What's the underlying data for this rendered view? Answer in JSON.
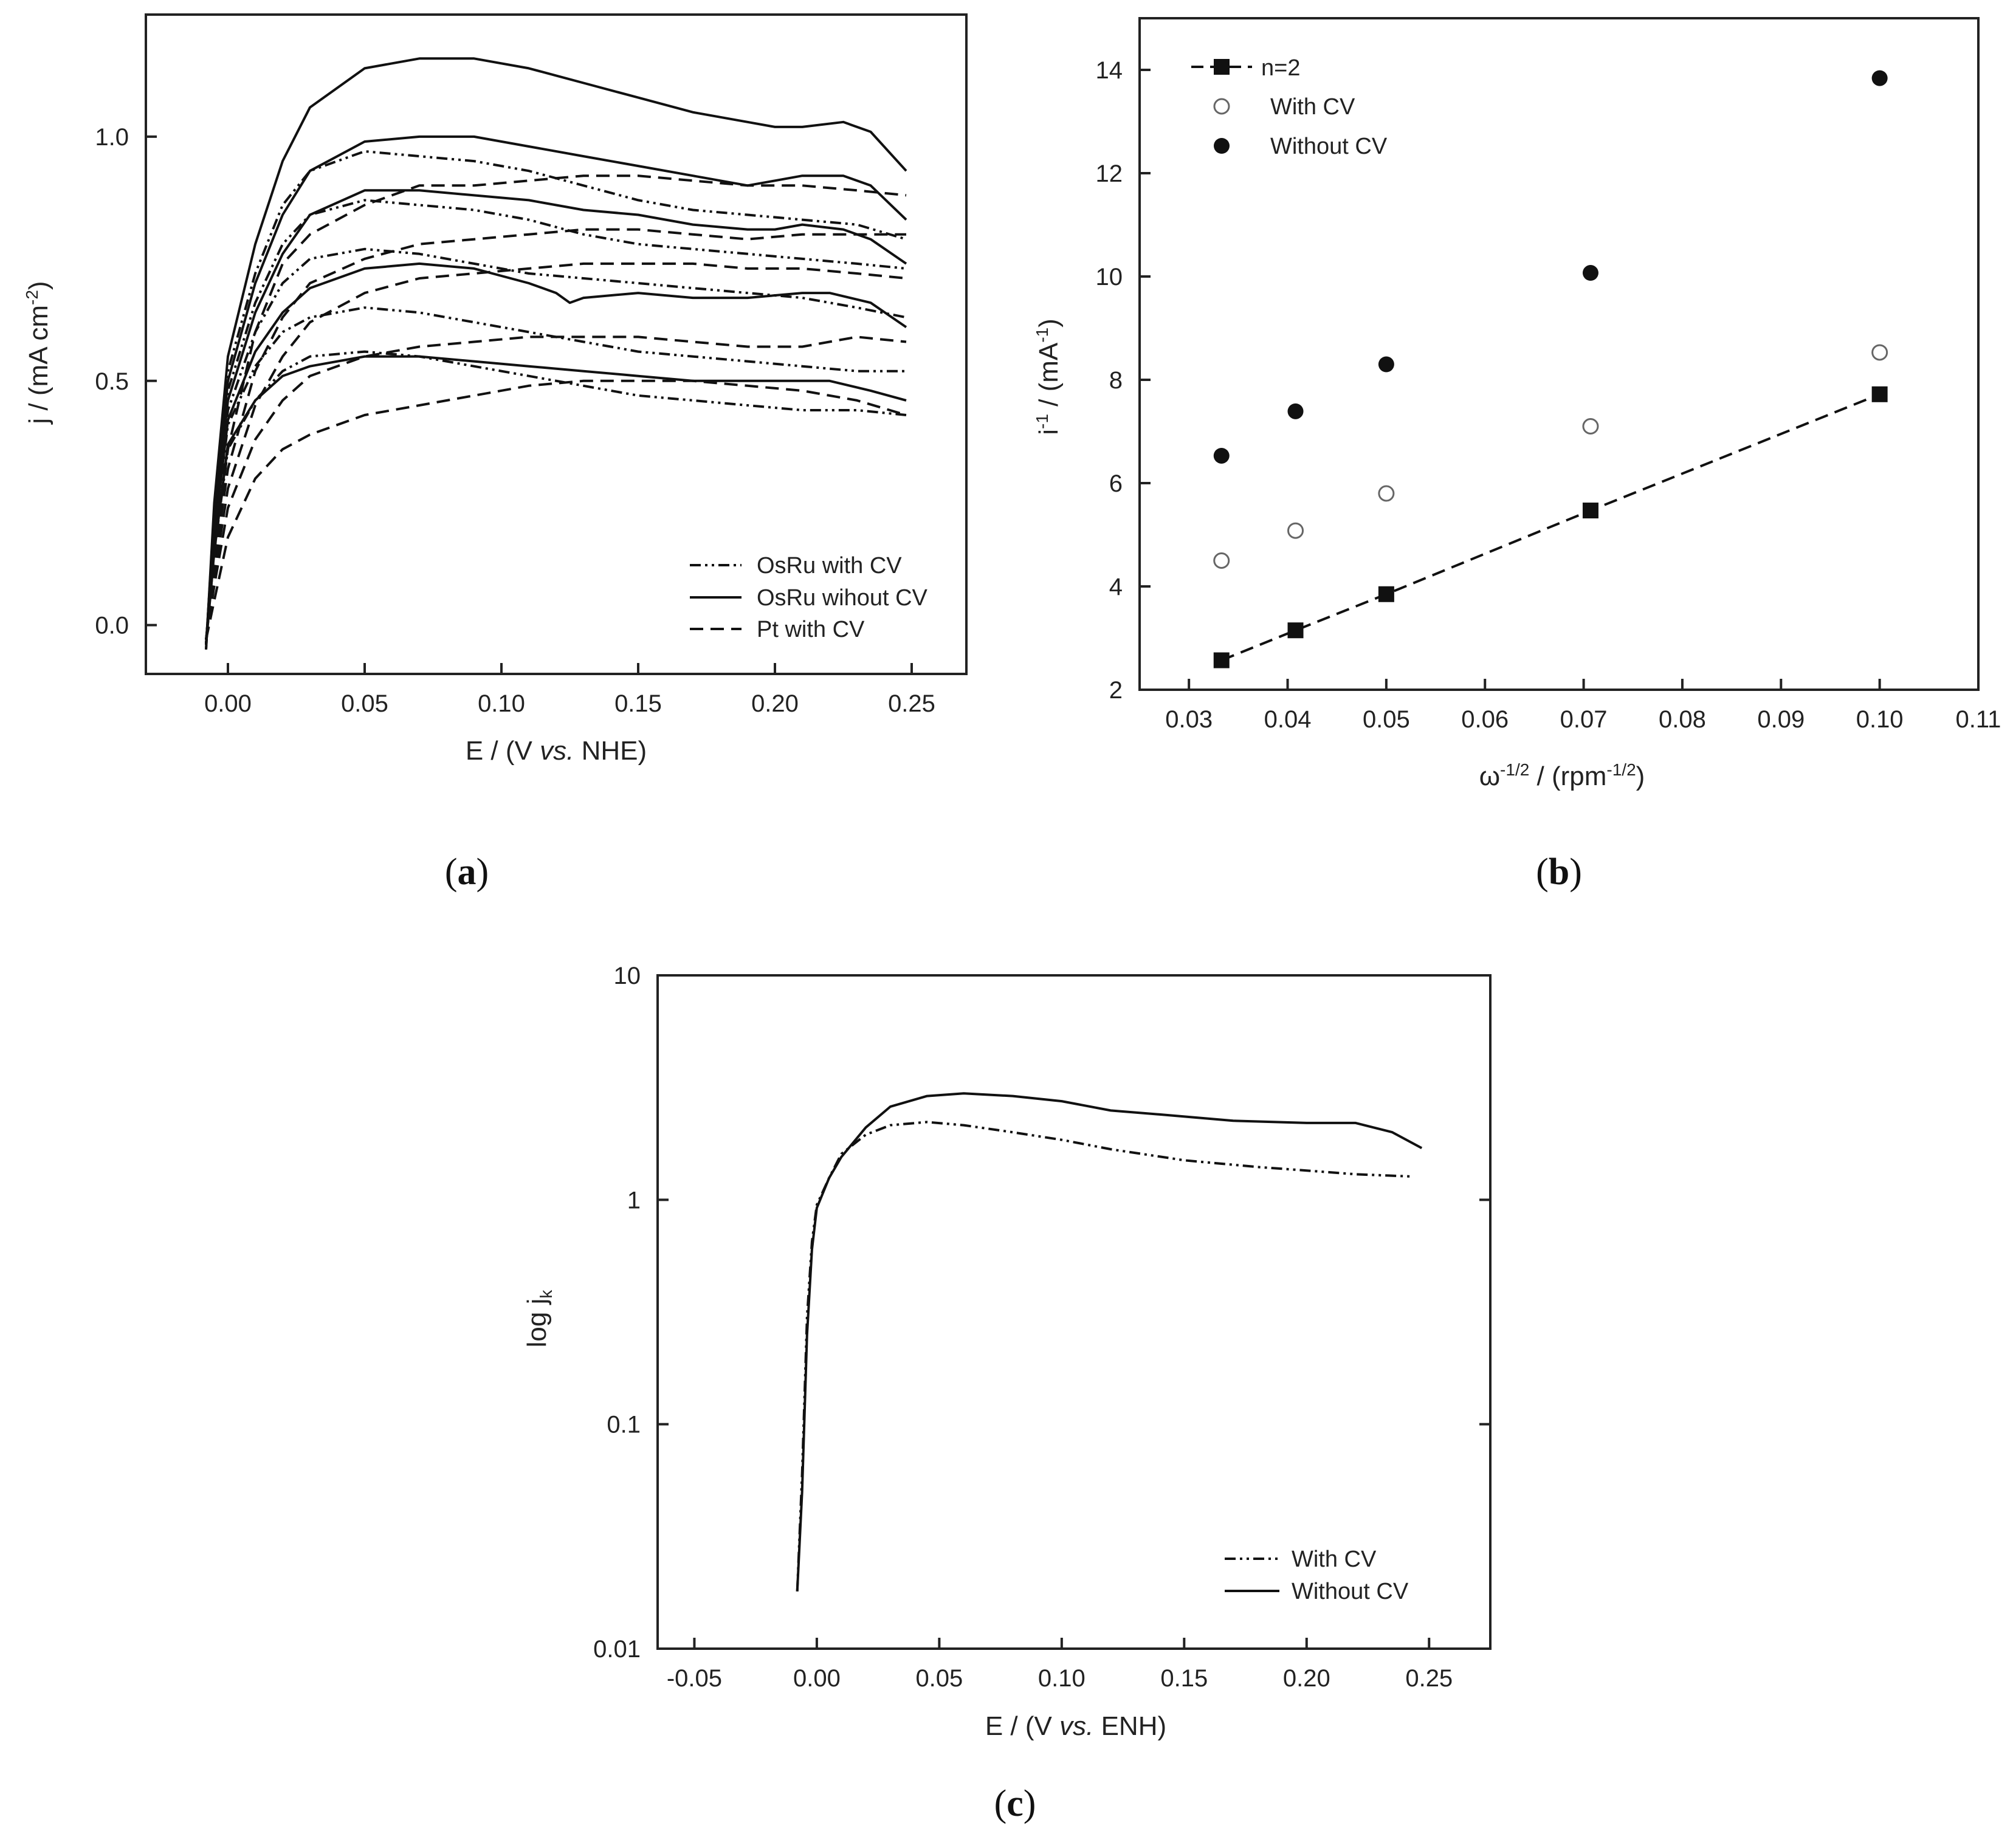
{
  "chart_data": [
    {
      "panel": "a",
      "type": "line",
      "caption_open": "(",
      "caption_letter": "a",
      "caption_close": ")",
      "xlabel": "E / (V vs. NHE)",
      "xlabel_parts": [
        "E / (V ",
        "vs.",
        " NHE)"
      ],
      "ylabel": "j / (mA cm-2)",
      "ylabel_parts": [
        "j / (mA cm",
        "-2",
        ")"
      ],
      "xlim": [
        -0.03,
        0.27
      ],
      "ylim": [
        -0.1,
        1.25
      ],
      "xticks": [
        0.0,
        0.05,
        0.1,
        0.15,
        0.2,
        0.25
      ],
      "xtick_labels": [
        "0.00",
        "0.05",
        "0.10",
        "0.15",
        "0.20",
        "0.25"
      ],
      "yticks": [
        0.0,
        0.5,
        1.0
      ],
      "ytick_labels": [
        "0.0",
        "0.5",
        "1.0"
      ],
      "legend": [
        {
          "label": "OsRu with CV",
          "style": "dashdotdot"
        },
        {
          "label": "OsRu wihout CV",
          "style": "solid"
        },
        {
          "label": "Pt with CV",
          "style": "dash"
        }
      ],
      "legend_position": "lower-right",
      "series": [
        {
          "group": "OsRu wihout CV",
          "style": "solid",
          "x": [
            -0.008,
            -0.005,
            0.0,
            0.01,
            0.02,
            0.03,
            0.05,
            0.07,
            0.09,
            0.11,
            0.13,
            0.15,
            0.17,
            0.19,
            0.2,
            0.21,
            0.225,
            0.235,
            0.248
          ],
          "y": [
            -0.05,
            0.25,
            0.55,
            0.78,
            0.95,
            1.06,
            1.14,
            1.16,
            1.16,
            1.14,
            1.11,
            1.08,
            1.05,
            1.03,
            1.02,
            1.02,
            1.03,
            1.01,
            0.93
          ]
        },
        {
          "group": "OsRu wihout CV",
          "style": "solid",
          "x": [
            -0.008,
            -0.005,
            0.0,
            0.01,
            0.02,
            0.03,
            0.05,
            0.07,
            0.09,
            0.11,
            0.13,
            0.15,
            0.17,
            0.19,
            0.2,
            0.21,
            0.225,
            0.235,
            0.248
          ],
          "y": [
            -0.04,
            0.22,
            0.5,
            0.7,
            0.84,
            0.93,
            0.99,
            1.0,
            1.0,
            0.98,
            0.96,
            0.94,
            0.92,
            0.9,
            0.91,
            0.92,
            0.92,
            0.9,
            0.83
          ]
        },
        {
          "group": "OsRu wihout CV",
          "style": "solid",
          "x": [
            -0.008,
            -0.005,
            0.0,
            0.01,
            0.02,
            0.03,
            0.05,
            0.07,
            0.09,
            0.11,
            0.13,
            0.15,
            0.17,
            0.19,
            0.2,
            0.21,
            0.225,
            0.235,
            0.248
          ],
          "y": [
            -0.04,
            0.2,
            0.46,
            0.64,
            0.76,
            0.84,
            0.89,
            0.89,
            0.88,
            0.87,
            0.85,
            0.84,
            0.82,
            0.81,
            0.81,
            0.82,
            0.81,
            0.79,
            0.74
          ]
        },
        {
          "group": "OsRu wihout CV",
          "style": "solid",
          "x": [
            -0.008,
            -0.005,
            0.0,
            0.01,
            0.02,
            0.03,
            0.05,
            0.07,
            0.09,
            0.11,
            0.12,
            0.125,
            0.13,
            0.15,
            0.17,
            0.19,
            0.21,
            0.22,
            0.235,
            0.248
          ],
          "y": [
            -0.04,
            0.18,
            0.42,
            0.56,
            0.64,
            0.69,
            0.73,
            0.74,
            0.73,
            0.7,
            0.68,
            0.66,
            0.67,
            0.68,
            0.67,
            0.67,
            0.68,
            0.68,
            0.66,
            0.61
          ]
        },
        {
          "group": "OsRu wihout CV",
          "style": "solid",
          "x": [
            -0.008,
            -0.005,
            0.0,
            0.01,
            0.02,
            0.03,
            0.05,
            0.07,
            0.09,
            0.11,
            0.13,
            0.15,
            0.17,
            0.19,
            0.21,
            0.22,
            0.235,
            0.248
          ],
          "y": [
            -0.04,
            0.15,
            0.37,
            0.46,
            0.51,
            0.53,
            0.55,
            0.55,
            0.54,
            0.53,
            0.52,
            0.51,
            0.5,
            0.5,
            0.5,
            0.5,
            0.48,
            0.46
          ]
        },
        {
          "group": "OsRu with CV",
          "style": "dashdotdot",
          "x": [
            -0.008,
            -0.005,
            0.0,
            0.01,
            0.02,
            0.03,
            0.05,
            0.07,
            0.09,
            0.11,
            0.13,
            0.15,
            0.17,
            0.19,
            0.21,
            0.23,
            0.248
          ],
          "y": [
            -0.05,
            0.24,
            0.52,
            0.72,
            0.86,
            0.93,
            0.97,
            0.96,
            0.95,
            0.93,
            0.9,
            0.87,
            0.85,
            0.84,
            0.83,
            0.82,
            0.79
          ]
        },
        {
          "group": "OsRu with CV",
          "style": "dashdotdot",
          "x": [
            -0.008,
            -0.005,
            0.0,
            0.01,
            0.02,
            0.03,
            0.05,
            0.07,
            0.09,
            0.11,
            0.13,
            0.15,
            0.17,
            0.19,
            0.21,
            0.23,
            0.248
          ],
          "y": [
            -0.04,
            0.22,
            0.48,
            0.66,
            0.78,
            0.84,
            0.87,
            0.86,
            0.85,
            0.83,
            0.8,
            0.78,
            0.77,
            0.76,
            0.75,
            0.74,
            0.73
          ]
        },
        {
          "group": "OsRu with CV",
          "style": "dashdotdot",
          "x": [
            -0.008,
            -0.005,
            0.0,
            0.01,
            0.02,
            0.03,
            0.05,
            0.07,
            0.09,
            0.11,
            0.13,
            0.15,
            0.17,
            0.19,
            0.21,
            0.23,
            0.248
          ],
          "y": [
            -0.04,
            0.2,
            0.44,
            0.6,
            0.7,
            0.75,
            0.77,
            0.76,
            0.74,
            0.72,
            0.71,
            0.7,
            0.69,
            0.68,
            0.67,
            0.65,
            0.63
          ]
        },
        {
          "group": "OsRu with CV",
          "style": "dashdotdot",
          "x": [
            -0.008,
            -0.005,
            0.0,
            0.01,
            0.02,
            0.03,
            0.05,
            0.07,
            0.09,
            0.11,
            0.13,
            0.15,
            0.17,
            0.19,
            0.21,
            0.23,
            0.248
          ],
          "y": [
            -0.04,
            0.18,
            0.41,
            0.53,
            0.6,
            0.63,
            0.65,
            0.64,
            0.62,
            0.6,
            0.58,
            0.56,
            0.55,
            0.54,
            0.53,
            0.52,
            0.52
          ]
        },
        {
          "group": "OsRu with CV",
          "style": "dashdotdot",
          "x": [
            -0.008,
            -0.005,
            0.0,
            0.01,
            0.02,
            0.03,
            0.05,
            0.07,
            0.09,
            0.11,
            0.13,
            0.15,
            0.17,
            0.19,
            0.21,
            0.23,
            0.248
          ],
          "y": [
            -0.04,
            0.15,
            0.36,
            0.46,
            0.52,
            0.55,
            0.56,
            0.55,
            0.53,
            0.51,
            0.49,
            0.47,
            0.46,
            0.45,
            0.44,
            0.44,
            0.43
          ]
        },
        {
          "group": "Pt with CV",
          "style": "dash",
          "x": [
            -0.008,
            -0.005,
            0.0,
            0.01,
            0.02,
            0.03,
            0.05,
            0.07,
            0.09,
            0.11,
            0.13,
            0.15,
            0.17,
            0.19,
            0.21,
            0.23,
            0.248
          ],
          "y": [
            -0.03,
            0.14,
            0.36,
            0.6,
            0.74,
            0.8,
            0.86,
            0.9,
            0.9,
            0.91,
            0.92,
            0.92,
            0.91,
            0.9,
            0.9,
            0.89,
            0.88
          ]
        },
        {
          "group": "Pt with CV",
          "style": "dash",
          "x": [
            -0.008,
            -0.005,
            0.0,
            0.01,
            0.02,
            0.03,
            0.05,
            0.07,
            0.09,
            0.11,
            0.13,
            0.15,
            0.17,
            0.19,
            0.21,
            0.23,
            0.248
          ],
          "y": [
            -0.03,
            0.12,
            0.32,
            0.52,
            0.63,
            0.7,
            0.75,
            0.78,
            0.79,
            0.8,
            0.81,
            0.81,
            0.8,
            0.79,
            0.8,
            0.8,
            0.8
          ]
        },
        {
          "group": "Pt with CV",
          "style": "dash",
          "x": [
            -0.008,
            -0.005,
            0.0,
            0.01,
            0.02,
            0.03,
            0.05,
            0.07,
            0.09,
            0.11,
            0.13,
            0.15,
            0.17,
            0.19,
            0.21,
            0.23,
            0.248
          ],
          "y": [
            -0.03,
            0.1,
            0.28,
            0.45,
            0.55,
            0.62,
            0.68,
            0.71,
            0.72,
            0.73,
            0.74,
            0.74,
            0.74,
            0.73,
            0.73,
            0.72,
            0.71
          ]
        },
        {
          "group": "Pt with CV",
          "style": "dash",
          "x": [
            -0.008,
            -0.005,
            0.0,
            0.01,
            0.02,
            0.03,
            0.05,
            0.07,
            0.09,
            0.11,
            0.13,
            0.15,
            0.17,
            0.19,
            0.21,
            0.23,
            0.248
          ],
          "y": [
            -0.03,
            0.08,
            0.24,
            0.38,
            0.46,
            0.51,
            0.55,
            0.57,
            0.58,
            0.59,
            0.59,
            0.59,
            0.58,
            0.57,
            0.57,
            0.59,
            0.58
          ]
        },
        {
          "group": "Pt with CV",
          "style": "dash",
          "x": [
            -0.008,
            -0.005,
            0.0,
            0.01,
            0.02,
            0.03,
            0.05,
            0.07,
            0.09,
            0.11,
            0.13,
            0.15,
            0.17,
            0.19,
            0.21,
            0.23,
            0.248
          ],
          "y": [
            -0.03,
            0.05,
            0.18,
            0.3,
            0.36,
            0.39,
            0.43,
            0.45,
            0.47,
            0.49,
            0.5,
            0.5,
            0.5,
            0.49,
            0.48,
            0.46,
            0.43
          ]
        }
      ]
    },
    {
      "panel": "b",
      "type": "scatter",
      "caption_open": "(",
      "caption_letter": "b",
      "caption_close": ")",
      "xlabel": "ω-1/2 / (rpm-1/2)",
      "xlabel_parts": [
        "ω",
        "-1/2",
        " / (rpm",
        "-1/2",
        ")"
      ],
      "ylabel": "i-1 / (mA-1)",
      "ylabel_parts": [
        "i",
        "-1",
        " / (mA",
        "-1",
        ")"
      ],
      "xlim": [
        0.025,
        0.11
      ],
      "ylim": [
        2,
        15
      ],
      "xticks": [
        0.03,
        0.04,
        0.05,
        0.06,
        0.07,
        0.08,
        0.09,
        0.1,
        0.11
      ],
      "xtick_labels": [
        "0.03",
        "0.04",
        "0.05",
        "0.06",
        "0.07",
        "0.08",
        "0.09",
        "0.10",
        "0.11"
      ],
      "yticks": [
        2,
        4,
        6,
        8,
        10,
        12,
        14
      ],
      "ytick_labels": [
        "2",
        "4",
        "6",
        "8",
        "10",
        "12",
        "14"
      ],
      "legend_position": "top-left",
      "series": [
        {
          "name": "n=2",
          "marker": "filled-square",
          "line": "dash",
          "x": [
            0.0333,
            0.0408,
            0.05,
            0.0707,
            0.1
          ],
          "y": [
            2.57,
            3.15,
            3.85,
            5.47,
            7.72
          ]
        },
        {
          "name": "With CV",
          "marker": "open-circle",
          "x": [
            0.0333,
            0.0408,
            0.05,
            0.0707,
            0.1
          ],
          "y": [
            4.5,
            5.08,
            5.8,
            7.1,
            8.53
          ]
        },
        {
          "name": "Without CV",
          "marker": "filled-circle",
          "x": [
            0.0333,
            0.0408,
            0.05,
            0.0707,
            0.1
          ],
          "y": [
            6.53,
            7.39,
            8.3,
            10.07,
            13.84
          ]
        }
      ]
    },
    {
      "panel": "c",
      "type": "line",
      "caption_open": "(",
      "caption_letter": "c",
      "caption_close": ")",
      "xlabel": "E / (V vs. ENH)",
      "xlabel_parts": [
        "E / (V ",
        "vs.",
        " ENH)"
      ],
      "ylabel": "log jk",
      "ylabel_parts": [
        "log j",
        "k"
      ],
      "yscale": "log",
      "xlim": [
        -0.065,
        0.275
      ],
      "ylim": [
        0.01,
        10
      ],
      "xticks": [
        -0.05,
        0.0,
        0.05,
        0.1,
        0.15,
        0.2,
        0.25
      ],
      "xtick_labels": [
        "-0.05",
        "0.00",
        "0.05",
        "0.10",
        "0.15",
        "0.20",
        "0.25"
      ],
      "yticks": [
        0.01,
        0.1,
        1,
        10
      ],
      "ytick_labels": [
        "0.01",
        "0.1",
        "1",
        "10"
      ],
      "legend_position": "lower-right",
      "series": [
        {
          "name": "With CV",
          "style": "dashdotdot",
          "x": [
            -0.008,
            -0.006,
            -0.004,
            -0.002,
            0.0,
            0.005,
            0.01,
            0.02,
            0.03,
            0.045,
            0.06,
            0.08,
            0.1,
            0.12,
            0.15,
            0.18,
            0.2,
            0.22,
            0.243
          ],
          "y": [
            0.018,
            0.06,
            0.3,
            0.65,
            0.95,
            1.25,
            1.6,
            1.95,
            2.15,
            2.22,
            2.15,
            2.0,
            1.85,
            1.68,
            1.5,
            1.4,
            1.35,
            1.3,
            1.27
          ]
        },
        {
          "name": "Without CV",
          "style": "solid",
          "x": [
            -0.008,
            -0.006,
            -0.004,
            -0.002,
            0.0,
            0.005,
            0.01,
            0.02,
            0.03,
            0.045,
            0.06,
            0.08,
            0.1,
            0.12,
            0.14,
            0.17,
            0.2,
            0.22,
            0.235,
            0.247
          ],
          "y": [
            0.018,
            0.05,
            0.25,
            0.6,
            0.92,
            1.25,
            1.55,
            2.1,
            2.6,
            2.9,
            2.98,
            2.9,
            2.75,
            2.5,
            2.4,
            2.25,
            2.2,
            2.2,
            2.0,
            1.7
          ]
        }
      ]
    }
  ]
}
